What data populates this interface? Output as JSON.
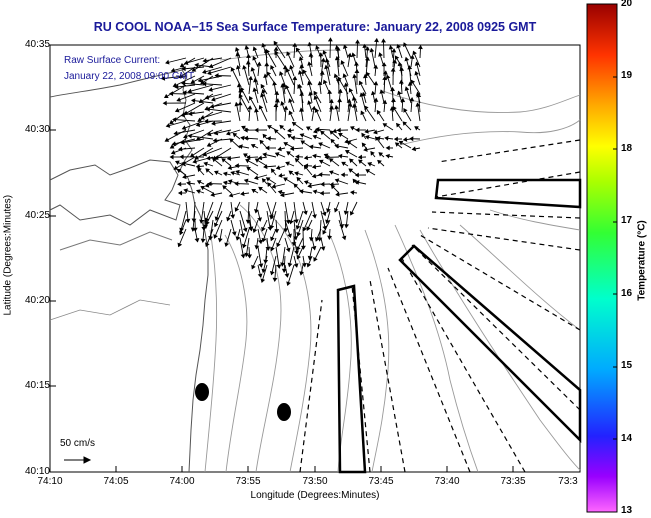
{
  "title": "RU COOL  NOAA−15  Sea Surface Temperature:  January 22, 2008 0925 GMT",
  "axes": {
    "xlabel": "Longitude (Degrees:Minutes)",
    "ylabel": "Latitude (Degrees:Minutes)",
    "xticks": [
      "74:10",
      "74:05",
      "74:00",
      "73:55",
      "73:50",
      "73:45",
      "73:40",
      "73:35",
      "73:3"
    ],
    "yticks": [
      "40:35",
      "40:30",
      "40:25",
      "40:20",
      "40:15",
      "40:10"
    ]
  },
  "colorbar": {
    "label": "Temperature (°C)",
    "ticks": [
      "20",
      "19",
      "18",
      "17",
      "16",
      "15",
      "14",
      "13"
    ],
    "range": [
      13,
      20
    ]
  },
  "overlay_text": {
    "line1": "Raw Surface Current:",
    "line2": "January 22, 2008 09:00 GMT"
  },
  "scale": {
    "label": "50 cm/s"
  }
}
